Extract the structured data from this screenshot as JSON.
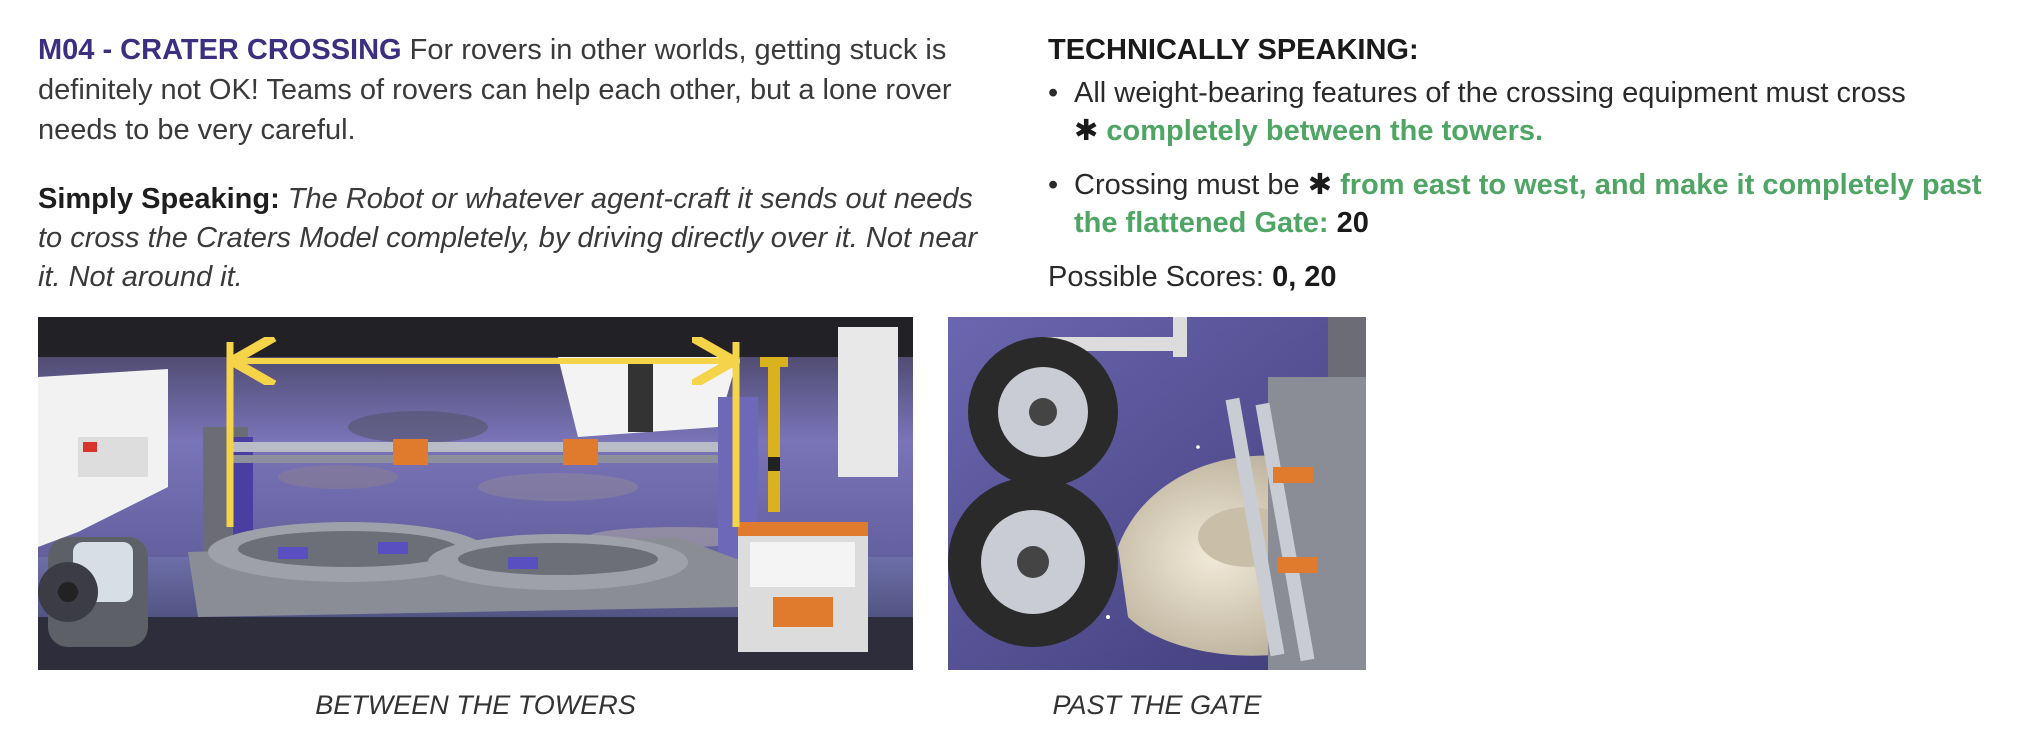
{
  "intro": {
    "mission_title": "M04 - CRATER CROSSING",
    "text": "For rovers in other worlds, getting stuck is definitely not OK! Teams of rovers can help each other, but a lone rover needs to be very careful."
  },
  "simply": {
    "label": "Simply Speaking:",
    "text": "The Robot or whatever agent-craft it sends out needs to cross the Craters Model completely, by driving directly over it. Not near it. Not around it."
  },
  "technical": {
    "heading": "TECHNICALLY SPEAKING:",
    "rules": [
      {
        "bullet": "•",
        "text": "All weight-bearing features of the crossing equipment must cross",
        "star": "✱",
        "highlight": "completely between the towers.",
        "points": ""
      },
      {
        "bullet": "•",
        "text": "Crossing must be",
        "star": "✱",
        "highlight": "from east to west, and make it completely past the flattened Gate:",
        "points": "20"
      }
    ],
    "scores_label": "Possible Scores:",
    "scores_value": "0, 20"
  },
  "photos": [
    {
      "caption": "BETWEEN THE TOWERS",
      "icon": "crater-model-photo"
    },
    {
      "caption": "PAST THE GATE",
      "icon": "rover-wheels-photo"
    }
  ],
  "colors": {
    "title": "#3c2f80",
    "highlight": "#4ea564",
    "arrow": "#f5d44a"
  }
}
